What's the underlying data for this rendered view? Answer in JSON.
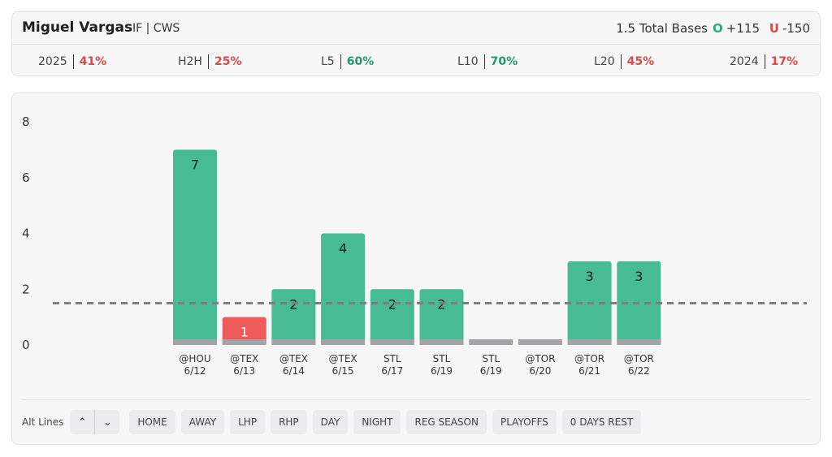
{
  "player": {
    "name": "Miguel Vargas",
    "meta": "IF | CWS"
  },
  "prop": {
    "line": "1.5 Total Bases",
    "over_mark": "O",
    "over_odds": "+115",
    "under_mark": "U",
    "under_odds": "-150"
  },
  "stats": [
    {
      "label": "2025",
      "value": "41%",
      "status": "bad"
    },
    {
      "label": "H2H",
      "value": "25%",
      "status": "bad"
    },
    {
      "label": "L5",
      "value": "60%",
      "status": "good"
    },
    {
      "label": "L10",
      "value": "70%",
      "status": "good"
    },
    {
      "label": "L20",
      "value": "45%",
      "status": "bad"
    },
    {
      "label": "2024",
      "value": "17%",
      "status": "bad"
    }
  ],
  "colors": {
    "over": "#47bb94",
    "under": "#ef5a5a",
    "baseline": "#a3a3a8",
    "line": "#7d7d82"
  },
  "chart_data": {
    "type": "bar",
    "categories": [
      "@HOU 6/12",
      "@TEX 6/13",
      "@TEX 6/14",
      "@TEX 6/15",
      "STL 6/17",
      "STL 6/19",
      "STL 6/19",
      "@TOR 6/20",
      "@TOR 6/21",
      "@TOR 6/22"
    ],
    "opponents": [
      "@HOU",
      "@TEX",
      "@TEX",
      "@TEX",
      "STL",
      "STL",
      "STL",
      "@TOR",
      "@TOR",
      "@TOR"
    ],
    "dates": [
      "6/12",
      "6/13",
      "6/14",
      "6/15",
      "6/17",
      "6/19",
      "6/19",
      "6/20",
      "6/21",
      "6/22"
    ],
    "values": [
      7,
      1,
      2,
      4,
      2,
      2,
      0,
      0,
      3,
      3
    ],
    "threshold": 1.5,
    "ylim": [
      0,
      8
    ],
    "yticks": [
      0,
      2,
      4,
      6,
      8
    ]
  },
  "filters": {
    "alt_label": "Alt Lines",
    "up_glyph": "⌃",
    "down_glyph": "⌄",
    "chips": [
      "HOME",
      "AWAY",
      "LHP",
      "RHP",
      "DAY",
      "NIGHT",
      "REG SEASON",
      "PLAYOFFS",
      "0 DAYS REST"
    ]
  }
}
